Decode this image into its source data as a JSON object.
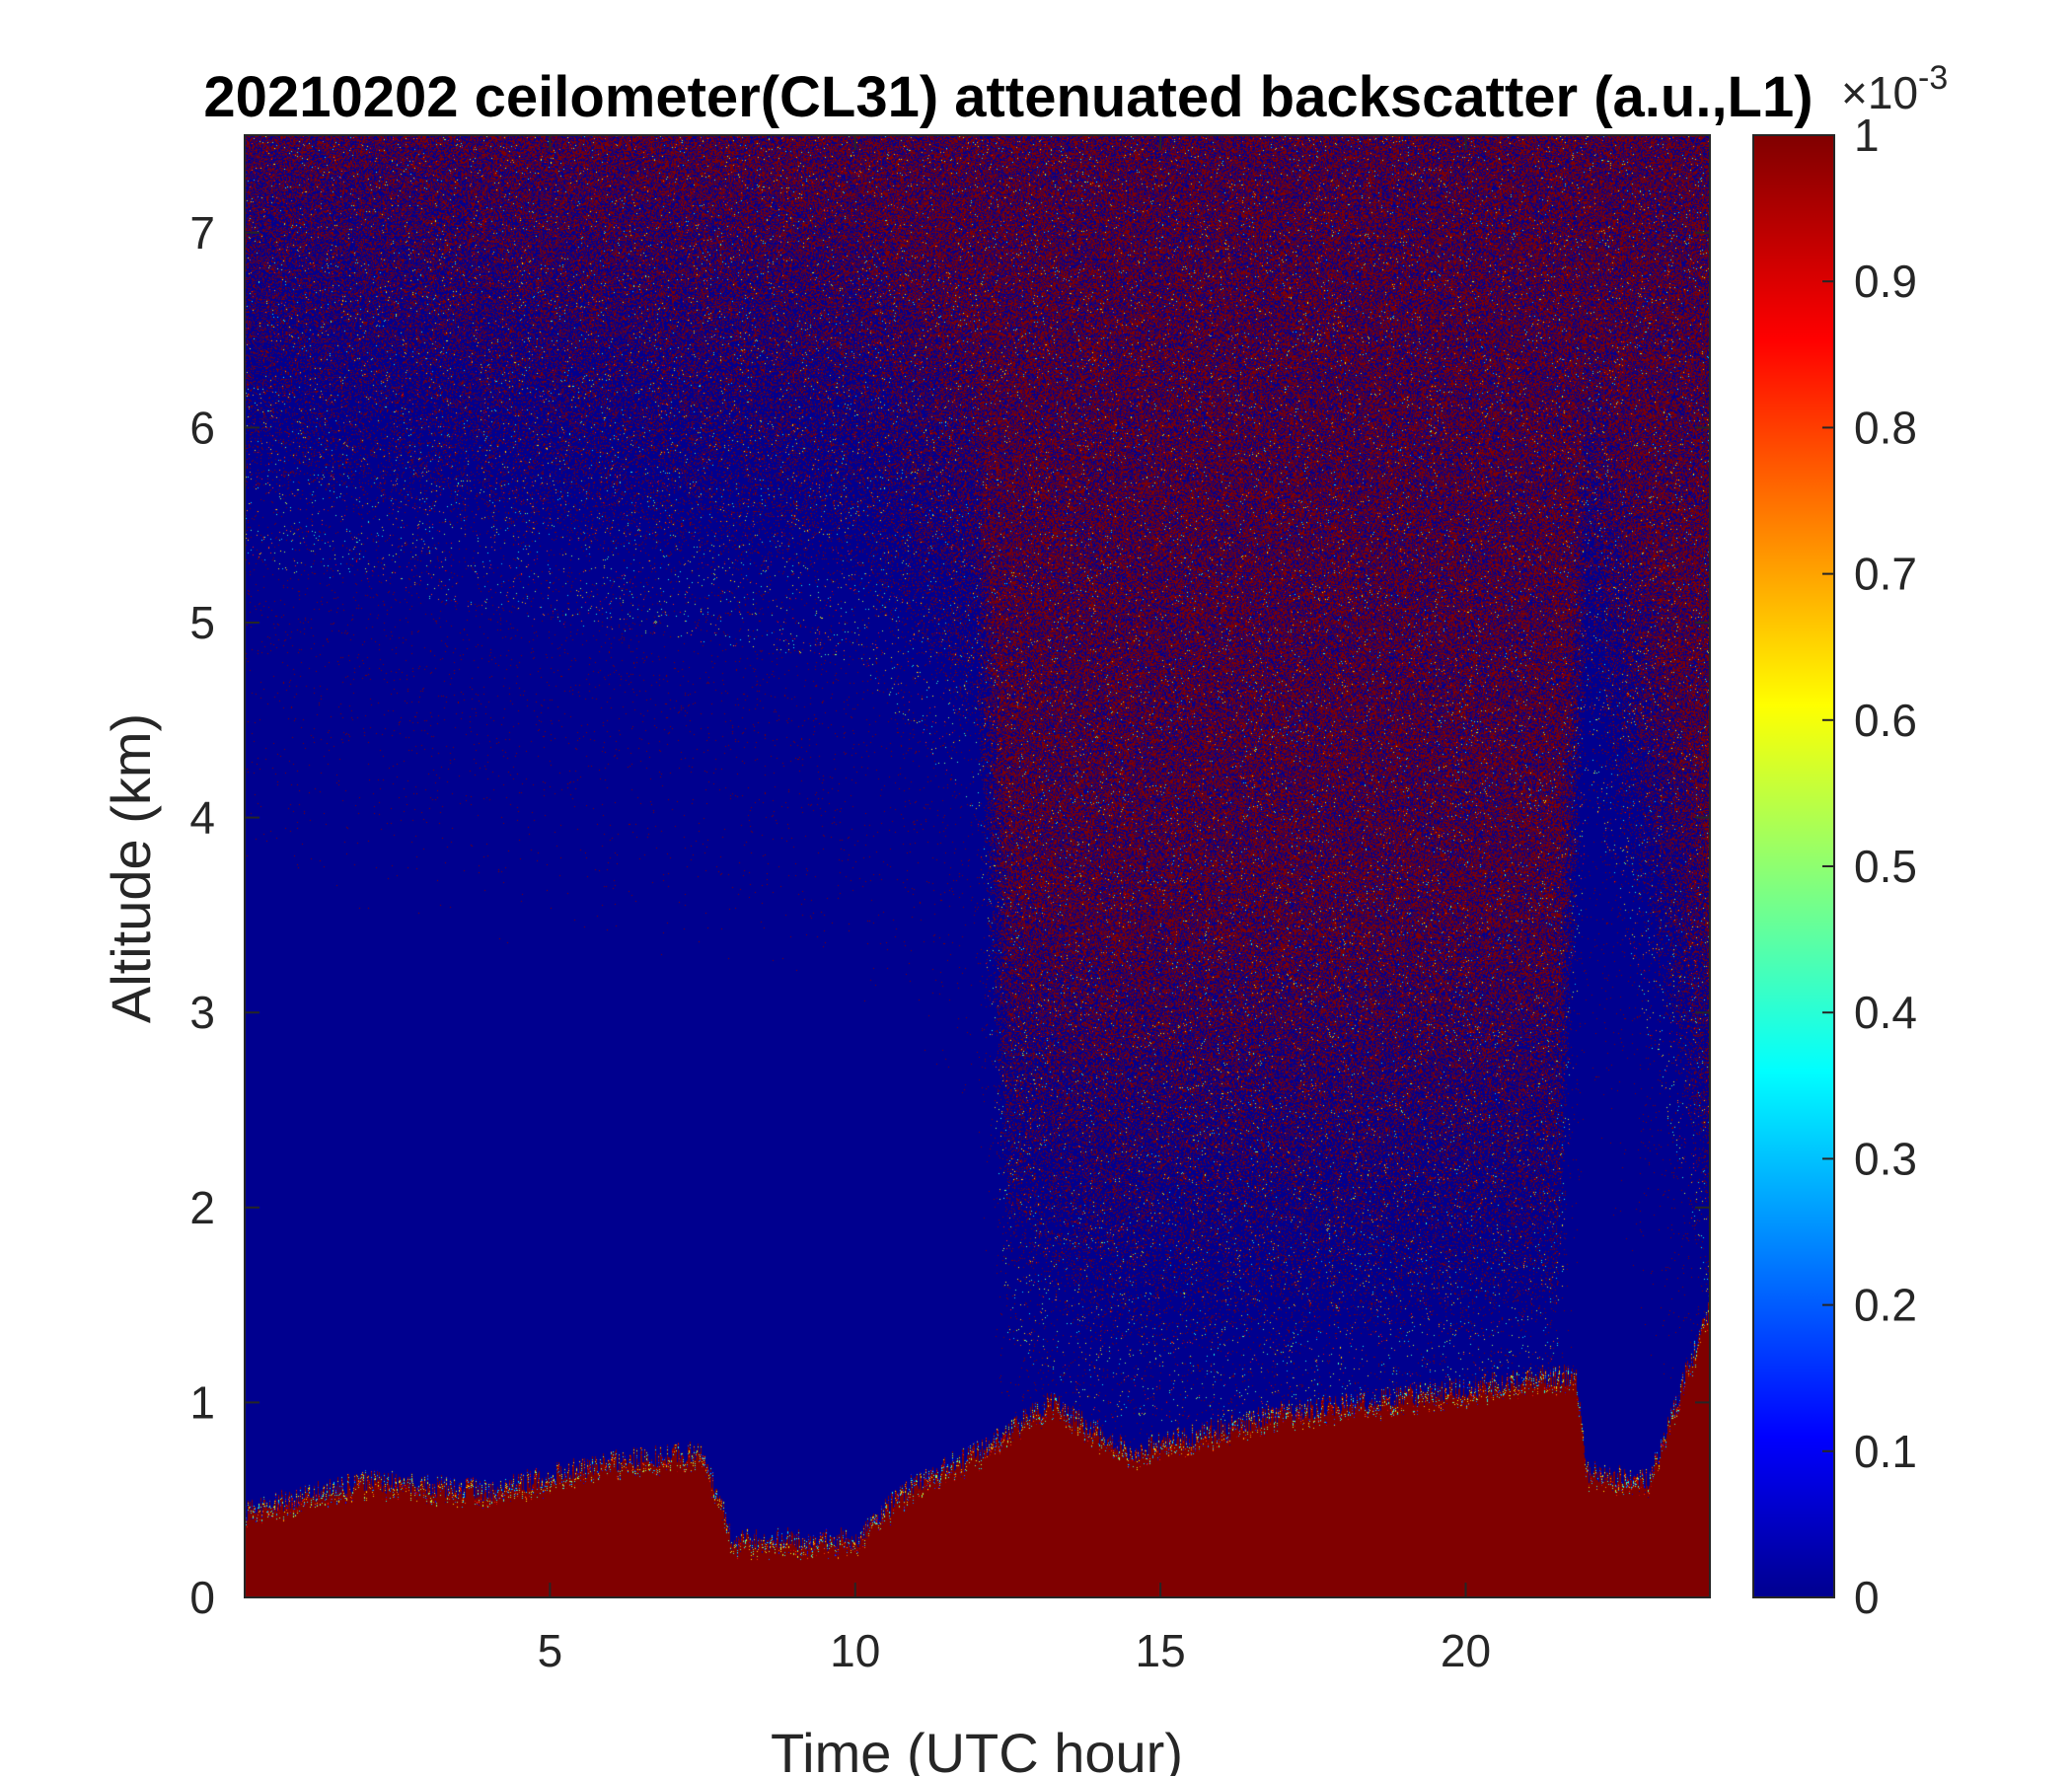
{
  "chart_data": {
    "type": "heatmap",
    "title": "20210202 ceilometer(CL31) attenuated backscatter (a.u.,L1)",
    "xlabel": "Time (UTC hour)",
    "ylabel": "Altitude (km)",
    "xlim": [
      0,
      24
    ],
    "ylim": [
      0,
      7.5
    ],
    "xticks": [
      5,
      10,
      15,
      20
    ],
    "yticks": [
      0,
      1,
      2,
      3,
      4,
      5,
      6,
      7
    ],
    "colorbar": {
      "colormap": "jet",
      "clim": [
        0,
        1
      ],
      "ticks": [
        0,
        0.1,
        0.2,
        0.3,
        0.4,
        0.5,
        0.6,
        0.7,
        0.8,
        0.9,
        1
      ],
      "tick_labels": [
        "0",
        "0.1",
        "0.2",
        "0.3",
        "0.4",
        "0.5",
        "0.6",
        "0.7",
        "0.8",
        "0.9",
        "1"
      ],
      "exponent_label": "×10",
      "exponent_power": "-3"
    },
    "features": {
      "boundary_layer_top_km": [
        {
          "t": 0,
          "z": 0.45
        },
        {
          "t": 2,
          "z": 0.6
        },
        {
          "t": 4,
          "z": 0.55
        },
        {
          "t": 6,
          "z": 0.7
        },
        {
          "t": 7.5,
          "z": 0.75
        },
        {
          "t": 8,
          "z": 0.3
        },
        {
          "t": 10,
          "z": 0.3
        },
        {
          "t": 11,
          "z": 0.6
        },
        {
          "t": 12,
          "z": 0.75
        },
        {
          "t": 13.2,
          "z": 1.0
        },
        {
          "t": 14.5,
          "z": 0.75
        },
        {
          "t": 17,
          "z": 0.95
        },
        {
          "t": 21.8,
          "z": 1.15
        },
        {
          "t": 22,
          "z": 0.65
        },
        {
          "t": 23,
          "z": 0.6
        },
        {
          "t": 24,
          "z": 1.5
        }
      ],
      "noise_onset_altitude_km": [
        {
          "t": 0,
          "z": 5.6
        },
        {
          "t": 5,
          "z": 5.3
        },
        {
          "t": 10,
          "z": 5.1
        },
        {
          "t": 12,
          "z": 4.3
        },
        {
          "t": 12.5,
          "z": 1.6
        },
        {
          "t": 14,
          "z": 1.2
        },
        {
          "t": 17,
          "z": 1.2
        },
        {
          "t": 21.5,
          "z": 1.3
        },
        {
          "t": 22,
          "z": 4.5
        },
        {
          "t": 23.5,
          "z": 2.5
        },
        {
          "t": 24,
          "z": 1.7
        }
      ]
    }
  }
}
